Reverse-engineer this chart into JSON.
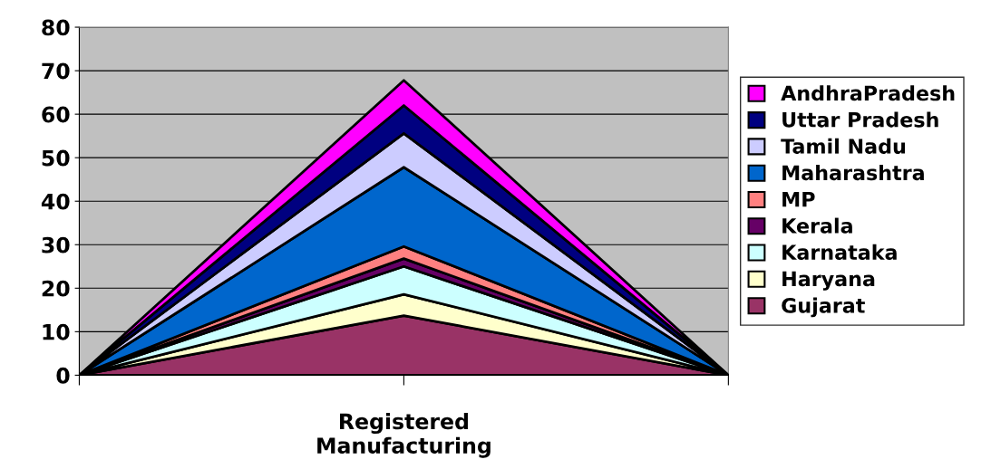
{
  "chart_data": {
    "type": "area",
    "stacked": true,
    "categories": [
      null,
      "Registered Manufacturing",
      null
    ],
    "series": [
      {
        "name": "Gujarat",
        "color": "#993366",
        "values": [
          0,
          13.7,
          0
        ]
      },
      {
        "name": "Haryana",
        "color": "#ffffcc",
        "values": [
          0,
          4.9,
          0
        ]
      },
      {
        "name": "Karnataka",
        "color": "#ccffff",
        "values": [
          0,
          6.4,
          0
        ]
      },
      {
        "name": "Kerala",
        "color": "#660066",
        "values": [
          0,
          1.8,
          0
        ]
      },
      {
        "name": "MP",
        "color": "#ff8080",
        "values": [
          0,
          2.8,
          0
        ]
      },
      {
        "name": "Maharashtra",
        "color": "#0066cc",
        "values": [
          0,
          18.2,
          0
        ]
      },
      {
        "name": "Tamil Nadu",
        "color": "#ccccff",
        "values": [
          0,
          7.8,
          0
        ]
      },
      {
        "name": "Uttar Pradesh",
        "color": "#000080",
        "values": [
          0,
          6.4,
          0
        ]
      },
      {
        "name": "AndhraPradesh",
        "color": "#ff00ff",
        "values": [
          0,
          5.8,
          0
        ]
      }
    ],
    "ylim": [
      0,
      80
    ],
    "yticks": [
      0,
      10,
      20,
      30,
      40,
      50,
      60,
      70,
      80
    ],
    "grid": "y",
    "legend": "right"
  }
}
